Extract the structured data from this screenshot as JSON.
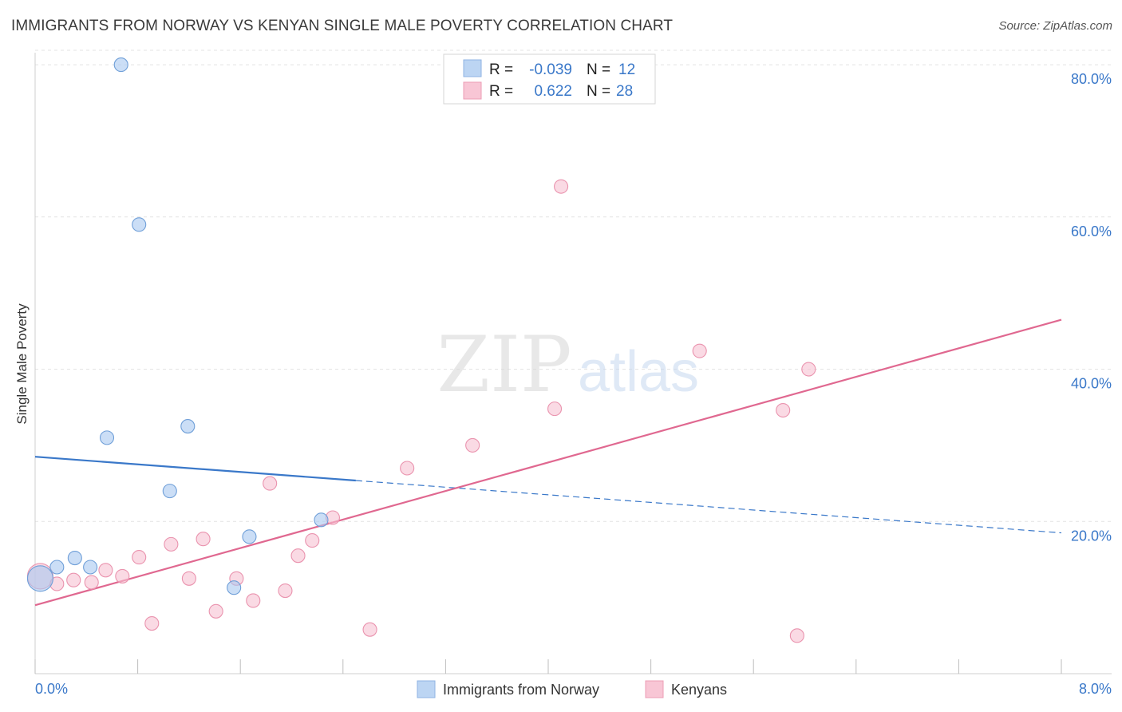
{
  "chart_data": {
    "type": "scatter",
    "title": "IMMIGRANTS FROM NORWAY VS KENYAN SINGLE MALE POVERTY CORRELATION CHART",
    "source": "Source: ZipAtlas.com",
    "ylabel": "Single Male Poverty",
    "xlabel": "",
    "xlim": [
      0,
      8
    ],
    "ylim": [
      0,
      82
    ],
    "x_tick_labels": [
      "0.0%",
      "8.0%"
    ],
    "y_ticks": [
      20,
      40,
      60,
      80
    ],
    "y_tick_labels": [
      "20.0%",
      "40.0%",
      "60.0%",
      "80.0%"
    ],
    "grid": true,
    "watermark": {
      "zip": "ZIP",
      "atlas": "atlas"
    },
    "stats": [
      {
        "r_label": "R =",
        "r_value": "-0.039",
        "n_label": "N =",
        "n_value": "12"
      },
      {
        "r_label": "R =",
        "r_value": "0.622",
        "n_label": "N =",
        "n_value": "28"
      }
    ],
    "series": [
      {
        "name": "Immigrants from Norway",
        "color": "#a8c8f0",
        "stroke": "#6f9fd8",
        "line_color": "#3a78c9",
        "trend": {
          "x0": 0.0,
          "y0": 28.5,
          "x_solid_end": 2.5,
          "x1": 8.0,
          "y1": 18.5
        },
        "points": [
          {
            "x": 0.04,
            "y": 12.5,
            "big": true
          },
          {
            "x": 0.17,
            "y": 14.0
          },
          {
            "x": 0.31,
            "y": 15.2
          },
          {
            "x": 0.43,
            "y": 14.0
          },
          {
            "x": 0.56,
            "y": 31.0
          },
          {
            "x": 0.67,
            "y": 80.0
          },
          {
            "x": 0.81,
            "y": 59.0
          },
          {
            "x": 1.05,
            "y": 24.0
          },
          {
            "x": 1.19,
            "y": 32.5
          },
          {
            "x": 1.55,
            "y": 11.3
          },
          {
            "x": 1.67,
            "y": 18.0
          },
          {
            "x": 2.23,
            "y": 20.2
          }
        ]
      },
      {
        "name": "Kenyans",
        "color": "#f7c2d2",
        "stroke": "#ea93ae",
        "line_color": "#e06890",
        "trend": {
          "x0": 0.0,
          "y0": 9.0,
          "x1": 8.0,
          "y1": 46.5
        },
        "points": [
          {
            "x": 0.04,
            "y": 12.8,
            "big": true
          },
          {
            "x": 0.17,
            "y": 11.8
          },
          {
            "x": 0.3,
            "y": 12.3
          },
          {
            "x": 0.44,
            "y": 12.0
          },
          {
            "x": 0.55,
            "y": 13.6
          },
          {
            "x": 0.68,
            "y": 12.8
          },
          {
            "x": 0.81,
            "y": 15.3
          },
          {
            "x": 0.91,
            "y": 6.6
          },
          {
            "x": 1.06,
            "y": 17.0
          },
          {
            "x": 1.2,
            "y": 12.5
          },
          {
            "x": 1.31,
            "y": 17.7
          },
          {
            "x": 1.41,
            "y": 8.2
          },
          {
            "x": 1.57,
            "y": 12.5
          },
          {
            "x": 1.7,
            "y": 9.6
          },
          {
            "x": 1.83,
            "y": 25.0
          },
          {
            "x": 1.95,
            "y": 10.9
          },
          {
            "x": 2.05,
            "y": 15.5
          },
          {
            "x": 2.16,
            "y": 17.5
          },
          {
            "x": 2.32,
            "y": 20.5
          },
          {
            "x": 2.61,
            "y": 5.8
          },
          {
            "x": 2.9,
            "y": 27.0
          },
          {
            "x": 3.41,
            "y": 30.0
          },
          {
            "x": 4.05,
            "y": 34.8
          },
          {
            "x": 4.1,
            "y": 64.0
          },
          {
            "x": 5.18,
            "y": 42.4
          },
          {
            "x": 5.83,
            "y": 34.6
          },
          {
            "x": 5.94,
            "y": 5.0
          },
          {
            "x": 6.03,
            "y": 40.0
          }
        ]
      }
    ]
  }
}
